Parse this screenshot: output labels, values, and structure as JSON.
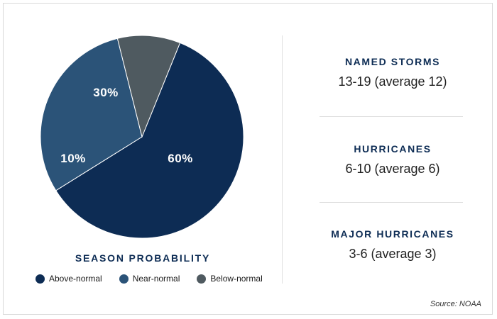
{
  "chart_data": {
    "type": "pie",
    "title": "SEASON PROBABILITY",
    "slices": [
      {
        "name": "Above-normal",
        "value": 60,
        "label": "60%",
        "color": "#0d2c54"
      },
      {
        "name": "Near-normal",
        "value": 30,
        "label": "30%",
        "color": "#2b5378"
      },
      {
        "name": "Below-normal",
        "value": 10,
        "label": "10%",
        "color": "#4f5a60"
      }
    ],
    "legend_placement": "bottom"
  },
  "stats": [
    {
      "label": "NAMED STORMS",
      "value": "13-19 (average 12)"
    },
    {
      "label": "HURRICANES",
      "value": "6-10 (average 6)"
    },
    {
      "label": "MAJOR HURRICANES",
      "value": "3-6 (average 3)"
    }
  ],
  "source": "Source: NOAA",
  "colors": {
    "accent": "#0d2c54",
    "divider": "#dcdcdc"
  }
}
